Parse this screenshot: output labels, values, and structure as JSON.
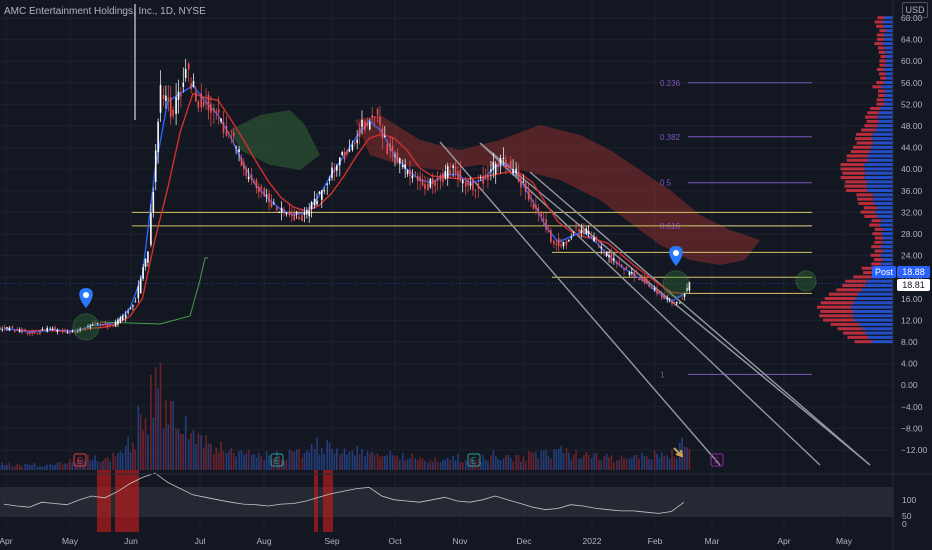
{
  "header": {
    "title": "AMC Entertainment Holdings, Inc., 1D, NYSE",
    "currency": "USD"
  },
  "price_tags": {
    "post_label": "Post",
    "post_value": "18.88",
    "last_value": "18.81"
  },
  "colors": {
    "background": "#131722",
    "up": "#ffffff",
    "down": "#ef5350",
    "baseline": "#d32f2f",
    "conversion": "#2962ff",
    "lagging": "#43a047",
    "fib": "#7e57c2",
    "level": "#d4c466",
    "channel": "#9598a1",
    "cloud_bear": "#8b2d2d",
    "cloud_bull": "#2e5e34",
    "marker": "#2979ff",
    "rsi_line": "#c8c8c8",
    "rsi_band": "#2a2e39"
  },
  "chart_data": {
    "type": "candlestick",
    "symbol": "AMC",
    "ylim": [
      -14,
      70
    ],
    "y_ticks": [
      "68.00",
      "64.00",
      "60.00",
      "56.00",
      "52.00",
      "48.00",
      "44.00",
      "40.00",
      "36.00",
      "32.00",
      "28.00",
      "24.00",
      "20.00",
      "16.00",
      "12.00",
      "8.00",
      "4.00",
      "0.00",
      "−4.00",
      "−8.00",
      "−12.00"
    ],
    "x_ticks": [
      "Apr",
      "May",
      "Jun",
      "Jul",
      "Aug",
      "Sep",
      "Oct",
      "Nov",
      "Dec",
      "2022",
      "Feb",
      "Mar",
      "Apr",
      "May"
    ],
    "closes_weekly": [
      10.5,
      10.0,
      9.6,
      10.4,
      10.2,
      9.8,
      10.6,
      11.6,
      10.9,
      12.6,
      15.8,
      25.0,
      55.0,
      50.0,
      58.0,
      53.0,
      52.0,
      48.0,
      44.0,
      38.0,
      36.0,
      33.0,
      32.0,
      31.0,
      33.0,
      37.0,
      41.0,
      44.0,
      48.0,
      50.0,
      44.0,
      41.0,
      39.0,
      37.0,
      38.0,
      40.0,
      38.0,
      37.0,
      39.0,
      42.0,
      40.0,
      36.0,
      32.0,
      27.0,
      26.0,
      29.0,
      28.0,
      25.0,
      23.0,
      21.0,
      20.0,
      18.0,
      16.0,
      15.0,
      18.8
    ],
    "volume_relative": [
      0.08,
      0.06,
      0.07,
      0.05,
      0.09,
      0.1,
      0.12,
      0.15,
      0.14,
      0.2,
      0.35,
      0.6,
      1.0,
      0.7,
      0.55,
      0.4,
      0.35,
      0.3,
      0.25,
      0.2,
      0.2,
      0.18,
      0.18,
      0.2,
      0.25,
      0.3,
      0.28,
      0.25,
      0.22,
      0.2,
      0.2,
      0.18,
      0.16,
      0.15,
      0.14,
      0.15,
      0.15,
      0.14,
      0.16,
      0.18,
      0.16,
      0.15,
      0.18,
      0.2,
      0.22,
      0.2,
      0.18,
      0.16,
      0.15,
      0.14,
      0.14,
      0.16,
      0.18,
      0.2,
      0.3
    ],
    "rsi_ticks": [
      "100",
      "50",
      "0"
    ],
    "rsi_values": [
      45,
      42,
      40,
      48,
      46,
      44,
      52,
      58,
      55,
      65,
      78,
      88,
      95,
      80,
      70,
      60,
      56,
      52,
      48,
      45,
      44,
      42,
      45,
      46,
      50,
      56,
      62,
      66,
      70,
      72,
      58,
      52,
      50,
      48,
      52,
      56,
      50,
      48,
      52,
      58,
      52,
      46,
      40,
      36,
      38,
      44,
      42,
      38,
      36,
      34,
      34,
      32,
      30,
      33,
      48
    ],
    "fib_levels": [
      {
        "label": "0.236",
        "price": 56.0
      },
      {
        "label": "0.382",
        "price": 46.0
      },
      {
        "label": "0.5",
        "price": 37.5
      },
      {
        "label": "0.616",
        "price": 29.5
      },
      {
        "label": "1",
        "price": 2.0
      }
    ],
    "horizontal_levels": [
      32.0,
      29.5,
      24.6,
      20.0,
      17.0
    ],
    "markers": [
      "E",
      "E",
      "E",
      "E"
    ],
    "last_price": 18.81,
    "post_price": 18.88
  }
}
